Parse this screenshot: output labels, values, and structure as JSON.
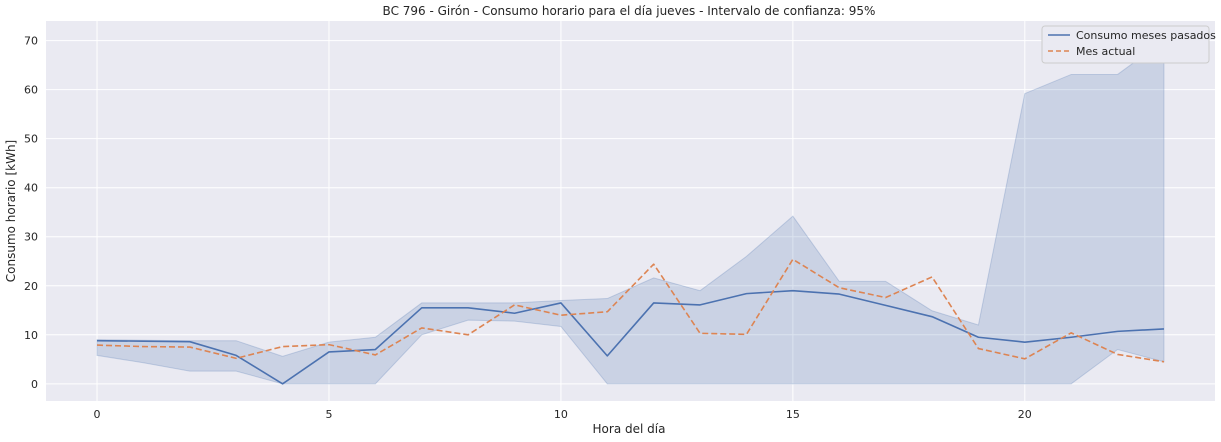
{
  "chart_data": {
    "type": "line",
    "title": "BC 796 - Girón - Consumo horario para el día jueves - Intervalo de confianza: 95%",
    "xlabel": "Hora del día",
    "ylabel": "Consumo horario [kWh]",
    "xlim": [
      -1.1,
      24.1
    ],
    "ylim": [
      -3.5,
      74
    ],
    "x_ticks": [
      0,
      5,
      10,
      15,
      20
    ],
    "y_ticks": [
      0,
      10,
      20,
      30,
      40,
      50,
      60,
      70
    ],
    "grid": true,
    "legend_position": "top-right",
    "x": [
      0,
      1,
      2,
      3,
      4,
      5,
      6,
      7,
      8,
      9,
      10,
      11,
      12,
      13,
      14,
      15,
      16,
      17,
      18,
      19,
      20,
      21,
      22,
      23
    ],
    "series": [
      {
        "name": "Consumo meses pasados",
        "color": "#4c72b0",
        "style": "solid",
        "values": [
          8.8,
          8.7,
          8.6,
          5.8,
          0.0,
          6.5,
          7.0,
          15.5,
          15.5,
          14.4,
          16.5,
          5.7,
          16.5,
          16.1,
          18.4,
          19.0,
          18.3,
          16.0,
          13.7,
          9.5,
          8.5,
          9.5,
          10.7,
          11.2
        ]
      },
      {
        "name": "Mes actual",
        "color": "#dd8452",
        "style": "dashed",
        "values": [
          7.9,
          7.6,
          7.5,
          5.2,
          7.6,
          8.0,
          5.9,
          11.4,
          10.0,
          16.1,
          14.0,
          14.7,
          24.4,
          10.3,
          10.1,
          25.4,
          19.6,
          17.6,
          21.8,
          7.2,
          5.1,
          10.4,
          6.0,
          4.5
        ]
      }
    ],
    "confidence_band": {
      "series": "Consumo meses pasados",
      "color": "#4c72b0",
      "lower": [
        5.8,
        4.3,
        2.6,
        2.6,
        0.0,
        0.0,
        0.0,
        10.0,
        13.0,
        12.8,
        11.7,
        0.0,
        0.0,
        0.0,
        0.0,
        0.0,
        0.0,
        0.0,
        0.0,
        0.0,
        0.0,
        0.0,
        7.0,
        4.5
      ],
      "upper": [
        9.0,
        8.9,
        8.8,
        8.8,
        5.6,
        8.5,
        9.5,
        16.5,
        16.5,
        16.5,
        17.0,
        17.4,
        21.6,
        19.0,
        26.0,
        34.2,
        20.9,
        20.9,
        14.9,
        12.0,
        59.2,
        63.1,
        63.1,
        70.0
      ]
    }
  }
}
